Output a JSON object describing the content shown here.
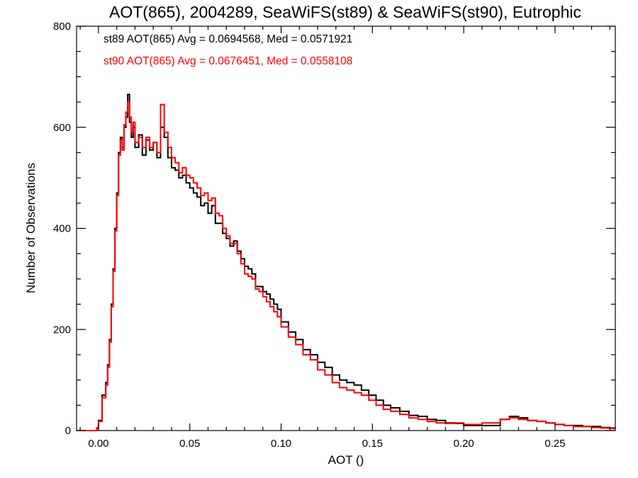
{
  "chart_data": {
    "type": "line",
    "style": "step",
    "title": "AOT(865), 2004289, SeaWiFS(st89) & SeaWiFS(st90), Eutrophic",
    "xlabel": "AOT ()",
    "ylabel": "Number of Observations",
    "xlim": [
      -0.012,
      0.283
    ],
    "ylim": [
      0,
      800
    ],
    "x_ticks": [
      0.0,
      0.05,
      0.1,
      0.15,
      0.2,
      0.25
    ],
    "x_tick_labels": [
      "0.00",
      "0.05",
      "0.10",
      "0.15",
      "0.20",
      "0.25"
    ],
    "y_ticks": [
      0,
      200,
      400,
      600,
      800
    ],
    "y_tick_labels": [
      "0",
      "200",
      "400",
      "600",
      "800"
    ],
    "grid": false,
    "series": [
      {
        "name": "st89",
        "color": "#000000",
        "legend": "st89 AOT(865) Avg = 0.0694568, Med = 0.0571921",
        "x": [
          -0.012,
          -0.004,
          -0.001,
          0.0,
          0.002,
          0.004,
          0.005,
          0.006,
          0.007,
          0.008,
          0.009,
          0.01,
          0.011,
          0.012,
          0.013,
          0.014,
          0.015,
          0.016,
          0.017,
          0.018,
          0.019,
          0.02,
          0.022,
          0.024,
          0.026,
          0.028,
          0.03,
          0.032,
          0.034,
          0.036,
          0.038,
          0.04,
          0.042,
          0.044,
          0.046,
          0.048,
          0.05,
          0.052,
          0.054,
          0.056,
          0.058,
          0.06,
          0.062,
          0.064,
          0.066,
          0.068,
          0.07,
          0.072,
          0.074,
          0.076,
          0.078,
          0.08,
          0.082,
          0.084,
          0.086,
          0.088,
          0.09,
          0.092,
          0.094,
          0.096,
          0.098,
          0.1,
          0.104,
          0.108,
          0.112,
          0.116,
          0.12,
          0.124,
          0.128,
          0.132,
          0.136,
          0.14,
          0.144,
          0.148,
          0.152,
          0.156,
          0.16,
          0.165,
          0.17,
          0.175,
          0.18,
          0.185,
          0.19,
          0.195,
          0.2,
          0.205,
          0.21,
          0.215,
          0.22,
          0.225,
          0.23,
          0.235,
          0.24,
          0.245,
          0.25,
          0.255,
          0.26,
          0.265,
          0.27,
          0.275,
          0.28,
          0.283
        ],
        "y": [
          0,
          0,
          5,
          20,
          70,
          95,
          130,
          180,
          250,
          320,
          400,
          470,
          550,
          580,
          560,
          600,
          620,
          665,
          610,
          580,
          600,
          560,
          585,
          545,
          575,
          555,
          570,
          540,
          600,
          580,
          540,
          520,
          515,
          500,
          505,
          490,
          480,
          470,
          462,
          445,
          450,
          430,
          445,
          410,
          410,
          390,
          380,
          365,
          375,
          355,
          340,
          325,
          320,
          310,
          285,
          285,
          275,
          270,
          260,
          250,
          240,
          215,
          195,
          180,
          160,
          150,
          135,
          125,
          110,
          100,
          95,
          90,
          80,
          70,
          60,
          50,
          45,
          38,
          30,
          28,
          22,
          20,
          15,
          14,
          10,
          10,
          10,
          10,
          22,
          28,
          25,
          20,
          18,
          15,
          12,
          10,
          10,
          8,
          8,
          6,
          5,
          3
        ]
      },
      {
        "name": "st90",
        "color": "#ff0000",
        "legend": "st90 AOT(865) Avg = 0.0676451, Med = 0.0558108",
        "x": [
          -0.012,
          -0.004,
          -0.001,
          0.0,
          0.002,
          0.004,
          0.005,
          0.006,
          0.007,
          0.008,
          0.009,
          0.01,
          0.011,
          0.012,
          0.013,
          0.014,
          0.015,
          0.016,
          0.017,
          0.018,
          0.019,
          0.02,
          0.022,
          0.024,
          0.026,
          0.028,
          0.03,
          0.032,
          0.034,
          0.036,
          0.038,
          0.04,
          0.042,
          0.044,
          0.046,
          0.048,
          0.05,
          0.052,
          0.054,
          0.056,
          0.058,
          0.06,
          0.062,
          0.064,
          0.066,
          0.068,
          0.07,
          0.072,
          0.074,
          0.076,
          0.078,
          0.08,
          0.082,
          0.084,
          0.086,
          0.088,
          0.09,
          0.092,
          0.094,
          0.096,
          0.098,
          0.1,
          0.104,
          0.108,
          0.112,
          0.116,
          0.12,
          0.124,
          0.128,
          0.132,
          0.136,
          0.14,
          0.144,
          0.148,
          0.152,
          0.156,
          0.16,
          0.165,
          0.17,
          0.175,
          0.18,
          0.185,
          0.19,
          0.195,
          0.2,
          0.205,
          0.21,
          0.215,
          0.22,
          0.225,
          0.23,
          0.235,
          0.24,
          0.245,
          0.25,
          0.255,
          0.26,
          0.265,
          0.27,
          0.275,
          0.28,
          0.283
        ],
        "y": [
          0,
          0,
          5,
          18,
          65,
          90,
          125,
          175,
          245,
          315,
          395,
          465,
          545,
          575,
          555,
          605,
          630,
          650,
          620,
          590,
          610,
          570,
          580,
          560,
          580,
          560,
          570,
          550,
          645,
          590,
          560,
          540,
          530,
          510,
          520,
          505,
          500,
          490,
          480,
          465,
          470,
          455,
          460,
          430,
          425,
          400,
          385,
          370,
          370,
          350,
          330,
          310,
          305,
          300,
          280,
          275,
          265,
          255,
          245,
          235,
          225,
          205,
          185,
          170,
          150,
          140,
          120,
          110,
          95,
          85,
          80,
          75,
          70,
          60,
          50,
          42,
          38,
          32,
          25,
          22,
          18,
          15,
          14,
          15,
          12,
          12,
          15,
          15,
          22,
          25,
          22,
          20,
          18,
          15,
          12,
          10,
          8,
          8,
          6,
          5,
          4,
          2
        ]
      }
    ]
  }
}
